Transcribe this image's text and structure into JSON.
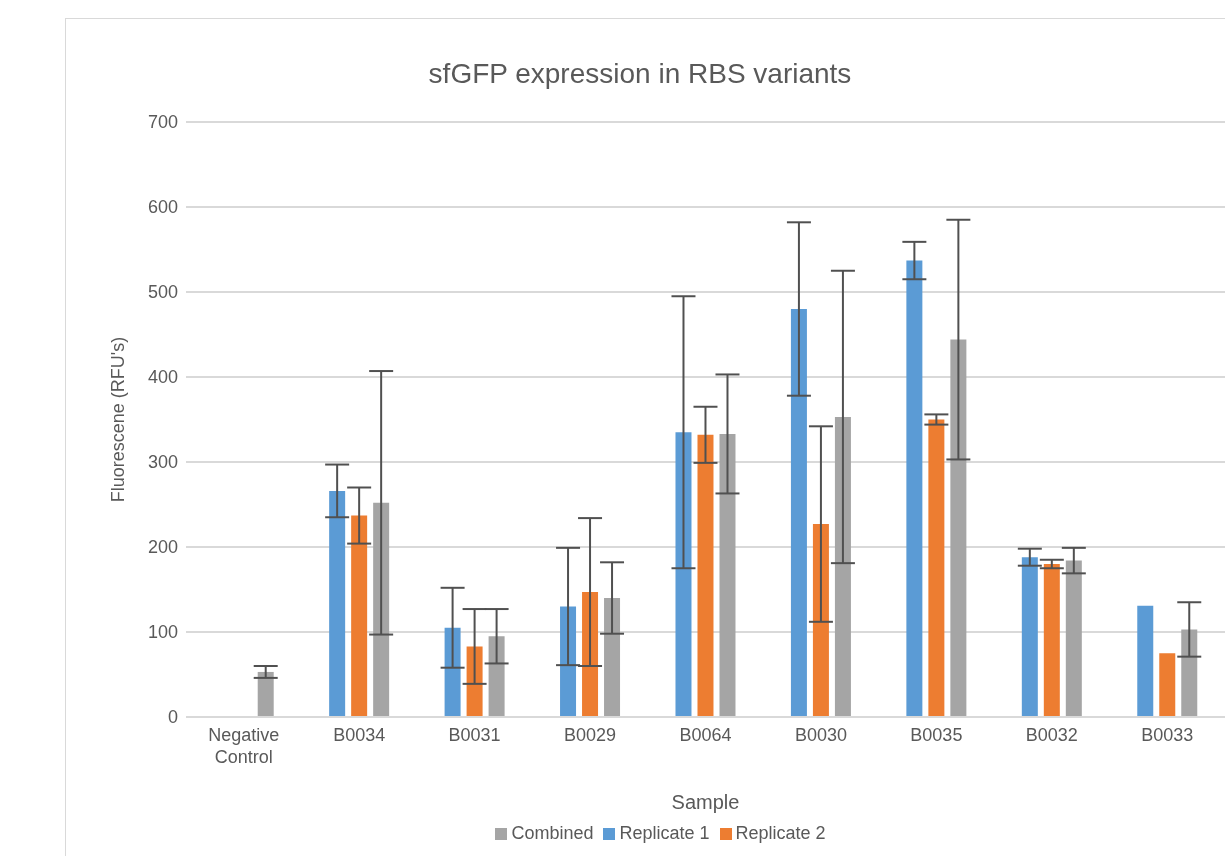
{
  "chart_data": {
    "type": "bar",
    "title": "sfGFP expression in RBS variants",
    "xlabel": "Sample",
    "ylabel": "Fluorescene (RFU's)",
    "categories": [
      "Negative Control",
      "B0034",
      "B0031",
      "B0029",
      "B0064",
      "B0030",
      "B0035",
      "B0032",
      "B0033"
    ],
    "series": [
      {
        "name": "Replicate 1",
        "color": "#5b9bd5",
        "values": [
          null,
          266,
          105,
          130,
          335,
          480,
          537,
          188,
          131
        ],
        "errors": [
          null,
          31,
          47,
          69,
          160,
          102,
          22,
          10,
          null
        ]
      },
      {
        "name": "Replicate 2",
        "color": "#ed7d31",
        "values": [
          null,
          237,
          83,
          147,
          332,
          227,
          350,
          180,
          75
        ],
        "errors": [
          null,
          33,
          44,
          87,
          33,
          115,
          6,
          5,
          null
        ]
      },
      {
        "name": "Combined",
        "color": "#a5a5a5",
        "values": [
          53,
          252,
          95,
          140,
          333,
          353,
          444,
          184,
          103
        ],
        "errors": [
          7,
          155,
          32,
          42,
          70,
          172,
          141,
          15,
          32
        ]
      }
    ],
    "ylim": [
      0,
      700
    ],
    "yticks": [
      0,
      100,
      200,
      300,
      400,
      500,
      600,
      700
    ],
    "grid": "y",
    "legend": "bottom"
  }
}
